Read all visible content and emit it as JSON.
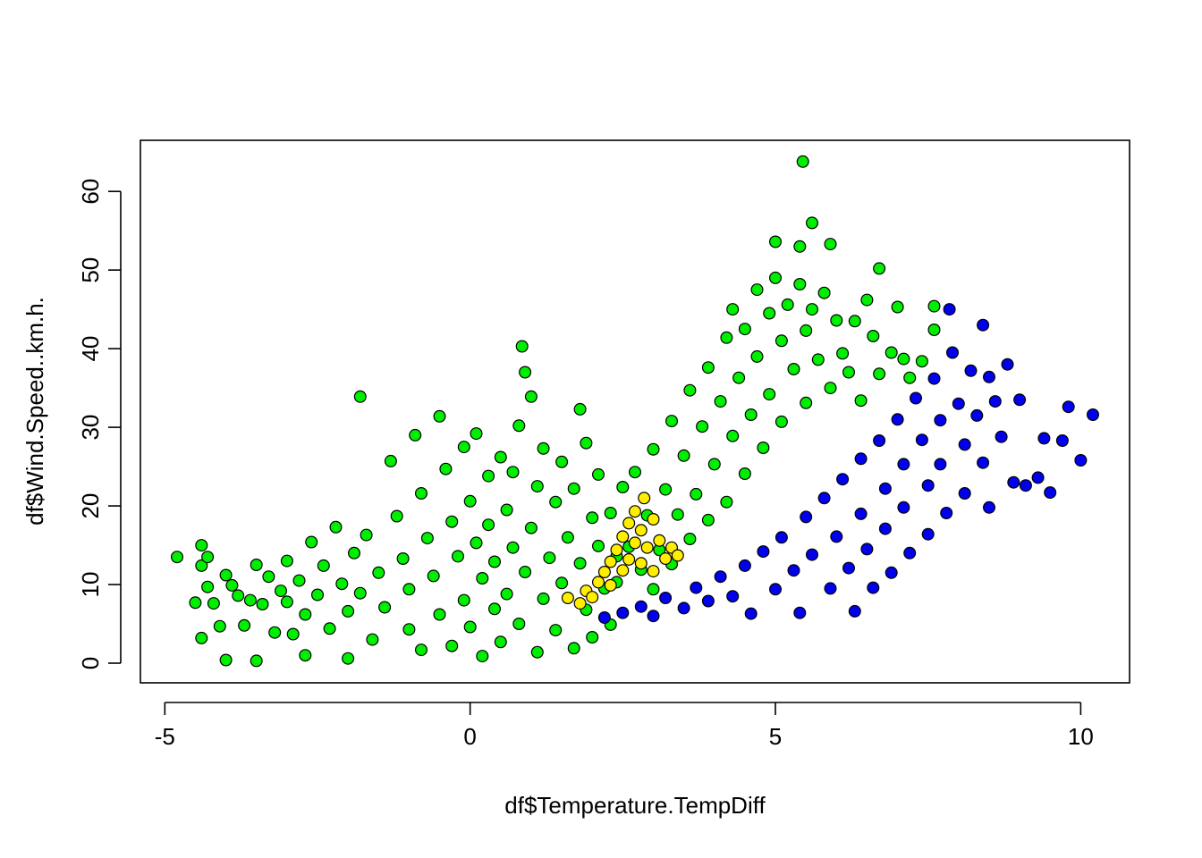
{
  "chart_data": {
    "type": "scatter",
    "title": "",
    "xlabel": "df$Temperature.TempDiff",
    "ylabel": "df$Wind.Speed..km.h.",
    "xlim": [
      -5.4,
      10.8
    ],
    "ylim": [
      -2.5,
      66.5
    ],
    "x_ticks": [
      -5,
      0,
      5,
      10
    ],
    "y_ticks": [
      0,
      10,
      20,
      30,
      40,
      50,
      60
    ],
    "x_tick_labels": [
      "-5",
      "0",
      "5",
      "10"
    ],
    "y_tick_labels": [
      "0",
      "10",
      "20",
      "30",
      "40",
      "50",
      "60"
    ],
    "grid": false,
    "legend": "none",
    "point_outline_color": "#000000",
    "series": [
      {
        "color": "#00ee00",
        "points": [
          [
            -4.8,
            13.5
          ],
          [
            -4.5,
            7.7
          ],
          [
            -4.4,
            15
          ],
          [
            -4.4,
            12.4
          ],
          [
            -4.4,
            3.2
          ],
          [
            -4.3,
            13.5
          ],
          [
            -4.3,
            9.7
          ],
          [
            -4.2,
            7.6
          ],
          [
            -4.1,
            4.7
          ],
          [
            -4.0,
            0.4
          ],
          [
            -4.0,
            11.2
          ],
          [
            -3.9,
            9.9
          ],
          [
            -3.8,
            8.6
          ],
          [
            -3.7,
            4.8
          ],
          [
            -3.6,
            8.0
          ],
          [
            -3.5,
            12.5
          ],
          [
            -3.5,
            0.3
          ],
          [
            -3.4,
            7.5
          ],
          [
            -3.3,
            11.0
          ],
          [
            -3.2,
            3.9
          ],
          [
            -3.1,
            9.2
          ],
          [
            -3.0,
            13.0
          ],
          [
            -3.0,
            7.8
          ],
          [
            -2.9,
            3.7
          ],
          [
            -2.8,
            10.5
          ],
          [
            -2.7,
            6.2
          ],
          [
            -2.7,
            1.0
          ],
          [
            -2.6,
            15.4
          ],
          [
            -2.5,
            8.7
          ],
          [
            -2.4,
            12.4
          ],
          [
            -2.3,
            4.4
          ],
          [
            -2.2,
            17.3
          ],
          [
            -2.1,
            10.1
          ],
          [
            -2.0,
            6.6
          ],
          [
            -2.0,
            0.6
          ],
          [
            -1.9,
            14.0
          ],
          [
            -1.8,
            8.9
          ],
          [
            -1.8,
            33.9
          ],
          [
            -1.7,
            16.3
          ],
          [
            -1.6,
            3.0
          ],
          [
            -1.5,
            11.5
          ],
          [
            -1.4,
            7.1
          ],
          [
            -1.3,
            25.7
          ],
          [
            -1.2,
            18.7
          ],
          [
            -1.1,
            13.3
          ],
          [
            -1.0,
            4.3
          ],
          [
            -1.0,
            9.4
          ],
          [
            -0.9,
            29.0
          ],
          [
            -0.8,
            21.6
          ],
          [
            -0.8,
            1.7
          ],
          [
            -0.7,
            15.9
          ],
          [
            -0.6,
            11.1
          ],
          [
            -0.5,
            6.2
          ],
          [
            -0.5,
            31.4
          ],
          [
            -0.4,
            24.7
          ],
          [
            -0.3,
            18.0
          ],
          [
            -0.3,
            2.2
          ],
          [
            -0.2,
            13.6
          ],
          [
            -0.1,
            8.0
          ],
          [
            -0.1,
            27.5
          ],
          [
            0.0,
            20.6
          ],
          [
            0.0,
            4.6
          ],
          [
            0.1,
            15.3
          ],
          [
            0.1,
            29.2
          ],
          [
            0.2,
            10.8
          ],
          [
            0.2,
            0.9
          ],
          [
            0.3,
            23.8
          ],
          [
            0.3,
            17.6
          ],
          [
            0.4,
            6.9
          ],
          [
            0.4,
            12.9
          ],
          [
            0.5,
            26.2
          ],
          [
            0.5,
            2.7
          ],
          [
            0.6,
            19.5
          ],
          [
            0.6,
            8.8
          ],
          [
            0.7,
            14.7
          ],
          [
            0.7,
            24.3
          ],
          [
            0.8,
            5.0
          ],
          [
            0.8,
            30.2
          ],
          [
            0.85,
            40.3
          ],
          [
            0.9,
            11.6
          ],
          [
            0.9,
            37.0
          ],
          [
            1.0,
            17.2
          ],
          [
            1.0,
            33.9
          ],
          [
            1.1,
            22.5
          ],
          [
            1.1,
            1.4
          ],
          [
            1.2,
            8.2
          ],
          [
            1.2,
            27.3
          ],
          [
            1.3,
            13.4
          ],
          [
            1.4,
            4.2
          ],
          [
            1.4,
            20.5
          ],
          [
            1.5,
            25.6
          ],
          [
            1.5,
            10.2
          ],
          [
            1.6,
            16.0
          ],
          [
            1.7,
            1.9
          ],
          [
            1.7,
            22.2
          ],
          [
            1.8,
            12.7
          ],
          [
            1.8,
            32.3
          ],
          [
            1.9,
            28.0
          ],
          [
            1.9,
            6.8
          ],
          [
            2.0,
            18.5
          ],
          [
            2.0,
            3.3
          ],
          [
            2.1,
            14.9
          ],
          [
            2.1,
            24.0
          ],
          [
            2.2,
            9.5
          ],
          [
            2.3,
            4.9
          ],
          [
            2.3,
            19.1
          ],
          [
            2.4,
            13.6
          ],
          [
            2.4,
            10.3
          ],
          [
            2.5,
            22.4
          ],
          [
            2.6,
            14.8
          ],
          [
            2.7,
            24.3
          ],
          [
            2.8,
            11.9
          ],
          [
            2.9,
            18.8
          ],
          [
            3.0,
            27.2
          ],
          [
            3.0,
            9.4
          ],
          [
            3.1,
            14.4
          ],
          [
            3.2,
            22.1
          ],
          [
            3.3,
            30.8
          ],
          [
            3.3,
            12.6
          ],
          [
            3.4,
            18.9
          ],
          [
            3.5,
            26.4
          ],
          [
            3.6,
            34.7
          ],
          [
            3.6,
            15.8
          ],
          [
            3.7,
            21.5
          ],
          [
            3.8,
            30.1
          ],
          [
            3.9,
            37.6
          ],
          [
            3.9,
            18.2
          ],
          [
            4.0,
            25.3
          ],
          [
            4.1,
            33.3
          ],
          [
            4.2,
            41.4
          ],
          [
            4.2,
            20.5
          ],
          [
            4.3,
            28.9
          ],
          [
            4.3,
            45.0
          ],
          [
            4.4,
            36.3
          ],
          [
            4.5,
            24.1
          ],
          [
            4.5,
            42.5
          ],
          [
            4.6,
            31.6
          ],
          [
            4.7,
            47.5
          ],
          [
            4.7,
            39.0
          ],
          [
            4.8,
            27.4
          ],
          [
            4.9,
            44.5
          ],
          [
            4.9,
            34.2
          ],
          [
            5.0,
            49.0
          ],
          [
            5.0,
            53.6
          ],
          [
            5.1,
            41.0
          ],
          [
            5.1,
            30.7
          ],
          [
            5.2,
            45.6
          ],
          [
            5.3,
            37.4
          ],
          [
            5.4,
            48.2
          ],
          [
            5.4,
            53.0
          ],
          [
            5.45,
            63.8
          ],
          [
            5.5,
            42.3
          ],
          [
            5.5,
            33.1
          ],
          [
            5.6,
            56.0
          ],
          [
            5.6,
            45.0
          ],
          [
            5.7,
            38.6
          ],
          [
            5.8,
            47.1
          ],
          [
            5.9,
            53.3
          ],
          [
            5.9,
            35.0
          ],
          [
            6.0,
            43.6
          ],
          [
            6.1,
            39.4
          ],
          [
            6.2,
            37.0
          ],
          [
            6.3,
            43.5
          ],
          [
            6.4,
            33.4
          ],
          [
            6.5,
            46.2
          ],
          [
            6.6,
            41.6
          ],
          [
            6.7,
            50.2
          ],
          [
            6.7,
            36.8
          ],
          [
            6.9,
            39.5
          ],
          [
            7.0,
            45.3
          ],
          [
            7.1,
            38.7
          ],
          [
            7.2,
            36.3
          ],
          [
            7.4,
            38.4
          ],
          [
            7.6,
            42.4
          ],
          [
            7.6,
            45.4
          ]
        ]
      },
      {
        "color": "#0000ee",
        "points": [
          [
            2.2,
            5.8
          ],
          [
            2.5,
            6.4
          ],
          [
            2.8,
            7.2
          ],
          [
            3.0,
            6.0
          ],
          [
            3.2,
            8.3
          ],
          [
            3.5,
            7.0
          ],
          [
            3.7,
            9.6
          ],
          [
            3.9,
            7.9
          ],
          [
            4.1,
            11.0
          ],
          [
            4.3,
            8.5
          ],
          [
            4.5,
            12.4
          ],
          [
            4.6,
            6.3
          ],
          [
            4.8,
            14.2
          ],
          [
            5.0,
            9.4
          ],
          [
            5.1,
            16.0
          ],
          [
            5.3,
            11.8
          ],
          [
            5.4,
            6.4
          ],
          [
            5.5,
            18.6
          ],
          [
            5.6,
            13.8
          ],
          [
            5.8,
            21.0
          ],
          [
            5.9,
            9.5
          ],
          [
            6.0,
            16.1
          ],
          [
            6.1,
            23.4
          ],
          [
            6.2,
            12.1
          ],
          [
            6.3,
            6.6
          ],
          [
            6.4,
            26.0
          ],
          [
            6.4,
            19.0
          ],
          [
            6.5,
            14.5
          ],
          [
            6.6,
            9.6
          ],
          [
            6.7,
            28.3
          ],
          [
            6.8,
            22.2
          ],
          [
            6.8,
            17.1
          ],
          [
            6.9,
            11.5
          ],
          [
            7.0,
            31.0
          ],
          [
            7.1,
            25.3
          ],
          [
            7.1,
            19.8
          ],
          [
            7.2,
            14.0
          ],
          [
            7.3,
            33.7
          ],
          [
            7.4,
            28.4
          ],
          [
            7.5,
            22.6
          ],
          [
            7.5,
            16.4
          ],
          [
            7.6,
            36.2
          ],
          [
            7.7,
            30.9
          ],
          [
            7.7,
            25.3
          ],
          [
            7.8,
            19.1
          ],
          [
            7.85,
            45.0
          ],
          [
            7.9,
            39.5
          ],
          [
            8.0,
            33.0
          ],
          [
            8.1,
            27.8
          ],
          [
            8.1,
            21.6
          ],
          [
            8.2,
            37.2
          ],
          [
            8.3,
            31.5
          ],
          [
            8.4,
            25.5
          ],
          [
            8.4,
            43.0
          ],
          [
            8.5,
            19.8
          ],
          [
            8.5,
            36.4
          ],
          [
            8.6,
            33.3
          ],
          [
            8.7,
            28.8
          ],
          [
            8.8,
            38.0
          ],
          [
            8.9,
            23.0
          ],
          [
            9.0,
            33.5
          ],
          [
            9.1,
            22.6
          ],
          [
            9.3,
            23.6
          ],
          [
            9.4,
            28.6
          ],
          [
            9.5,
            21.7
          ],
          [
            9.7,
            28.3
          ],
          [
            9.8,
            32.6
          ],
          [
            10.0,
            25.8
          ],
          [
            10.2,
            31.6
          ]
        ]
      },
      {
        "color": "#ffee00",
        "points": [
          [
            1.6,
            8.3
          ],
          [
            1.8,
            7.6
          ],
          [
            1.9,
            9.2
          ],
          [
            2.0,
            8.4
          ],
          [
            2.1,
            10.3
          ],
          [
            2.2,
            11.6
          ],
          [
            2.3,
            9.9
          ],
          [
            2.3,
            12.9
          ],
          [
            2.4,
            14.4
          ],
          [
            2.5,
            11.8
          ],
          [
            2.5,
            16.1
          ],
          [
            2.6,
            13.2
          ],
          [
            2.6,
            17.8
          ],
          [
            2.7,
            15.3
          ],
          [
            2.7,
            19.3
          ],
          [
            2.8,
            12.7
          ],
          [
            2.8,
            16.9
          ],
          [
            2.85,
            21.0
          ],
          [
            2.9,
            14.7
          ],
          [
            3.0,
            18.3
          ],
          [
            3.0,
            11.7
          ],
          [
            3.1,
            15.6
          ],
          [
            3.2,
            13.3
          ],
          [
            3.3,
            14.7
          ],
          [
            3.4,
            13.7
          ]
        ]
      }
    ]
  }
}
